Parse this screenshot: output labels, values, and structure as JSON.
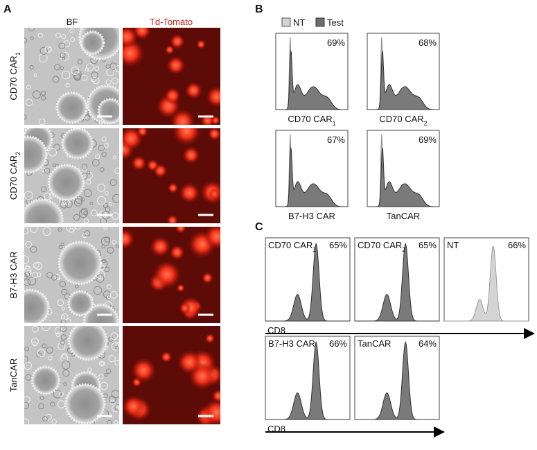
{
  "panel_a": {
    "label": "A",
    "columns": [
      "BF",
      "Td-Tomato"
    ],
    "rows": [
      {
        "text": "CD70 CAR",
        "sub": "1"
      },
      {
        "text": "CD70 CAR",
        "sub": "2"
      },
      {
        "text": "B7-H3 CAR"
      },
      {
        "text": "TanCAR"
      }
    ]
  },
  "panel_b": {
    "label": "B",
    "legend": [
      "NT",
      "Test"
    ],
    "plots": [
      {
        "name": {
          "text": "CD70 CAR",
          "sub": "1"
        },
        "percent": "69%"
      },
      {
        "name": {
          "text": "CD70 CAR",
          "sub": "2"
        },
        "percent": "68%"
      },
      {
        "name": {
          "text": "B7-H3 CAR"
        },
        "percent": "67%"
      },
      {
        "name": {
          "text": "TanCAR"
        },
        "percent": "69%"
      }
    ]
  },
  "panel_c": {
    "label": "C",
    "rows": [
      {
        "axis_label": "CD8",
        "plots": [
          {
            "name": {
              "text": "CD70 CAR",
              "sub": "1"
            },
            "percent": "65%"
          },
          {
            "name": {
              "text": "CD70 CAR",
              "sub": "2"
            },
            "percent": "65%"
          },
          {
            "name": {
              "text": "NT"
            },
            "percent": "66%"
          }
        ]
      },
      {
        "axis_label": "CD8",
        "plots": [
          {
            "name": {
              "text": "B7-H3 CAR"
            },
            "percent": "66%"
          },
          {
            "name": {
              "text": "TanCAR"
            },
            "percent": "64%"
          }
        ]
      }
    ]
  }
}
